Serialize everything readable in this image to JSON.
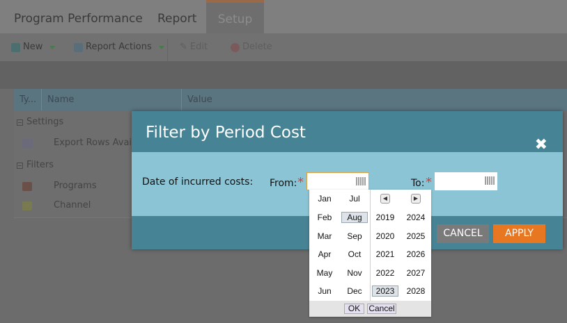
{
  "tabs": [
    {
      "label": "Program Performance"
    },
    {
      "label": "Report"
    },
    {
      "label": "Setup",
      "active": true
    }
  ],
  "toolbar": {
    "new": "New",
    "report_actions": "Report Actions",
    "edit": "Edit",
    "delete": "Delete"
  },
  "grid": {
    "columns": [
      "Ty...",
      "Name",
      "Value"
    ],
    "groups": [
      {
        "label": "Settings",
        "items": [
          {
            "name": "Export Rows Availa",
            "icon": "export-rows-icon"
          }
        ]
      },
      {
        "label": "Filters",
        "items": [
          {
            "name": "Programs",
            "icon": "programs-icon"
          },
          {
            "name": "Channel",
            "icon": "channel-icon"
          }
        ]
      }
    ]
  },
  "modal": {
    "title": "Filter by Period Cost",
    "field_label": "Date of incurred costs:",
    "from_label": "From:",
    "to_label": "To:",
    "required": "*",
    "from_value": "",
    "to_value": "",
    "cancel": "CANCEL",
    "apply": "APPLY"
  },
  "picker": {
    "months": [
      "Jan",
      "Jul",
      "Feb",
      "Aug",
      "Mar",
      "Sep",
      "Apr",
      "Oct",
      "May",
      "Nov",
      "Jun",
      "Dec"
    ],
    "years": [
      "2019",
      "2024",
      "2020",
      "2025",
      "2021",
      "2026",
      "2022",
      "2027",
      "2023",
      "2028"
    ],
    "selected_month": "Aug",
    "selected_year": "2023",
    "ok": "OK",
    "cancel": "Cancel"
  },
  "colors": {
    "modal_header": "#468394",
    "modal_body": "#8bc4d4",
    "apply": "#e87722",
    "cancel": "#7a7a7a"
  }
}
